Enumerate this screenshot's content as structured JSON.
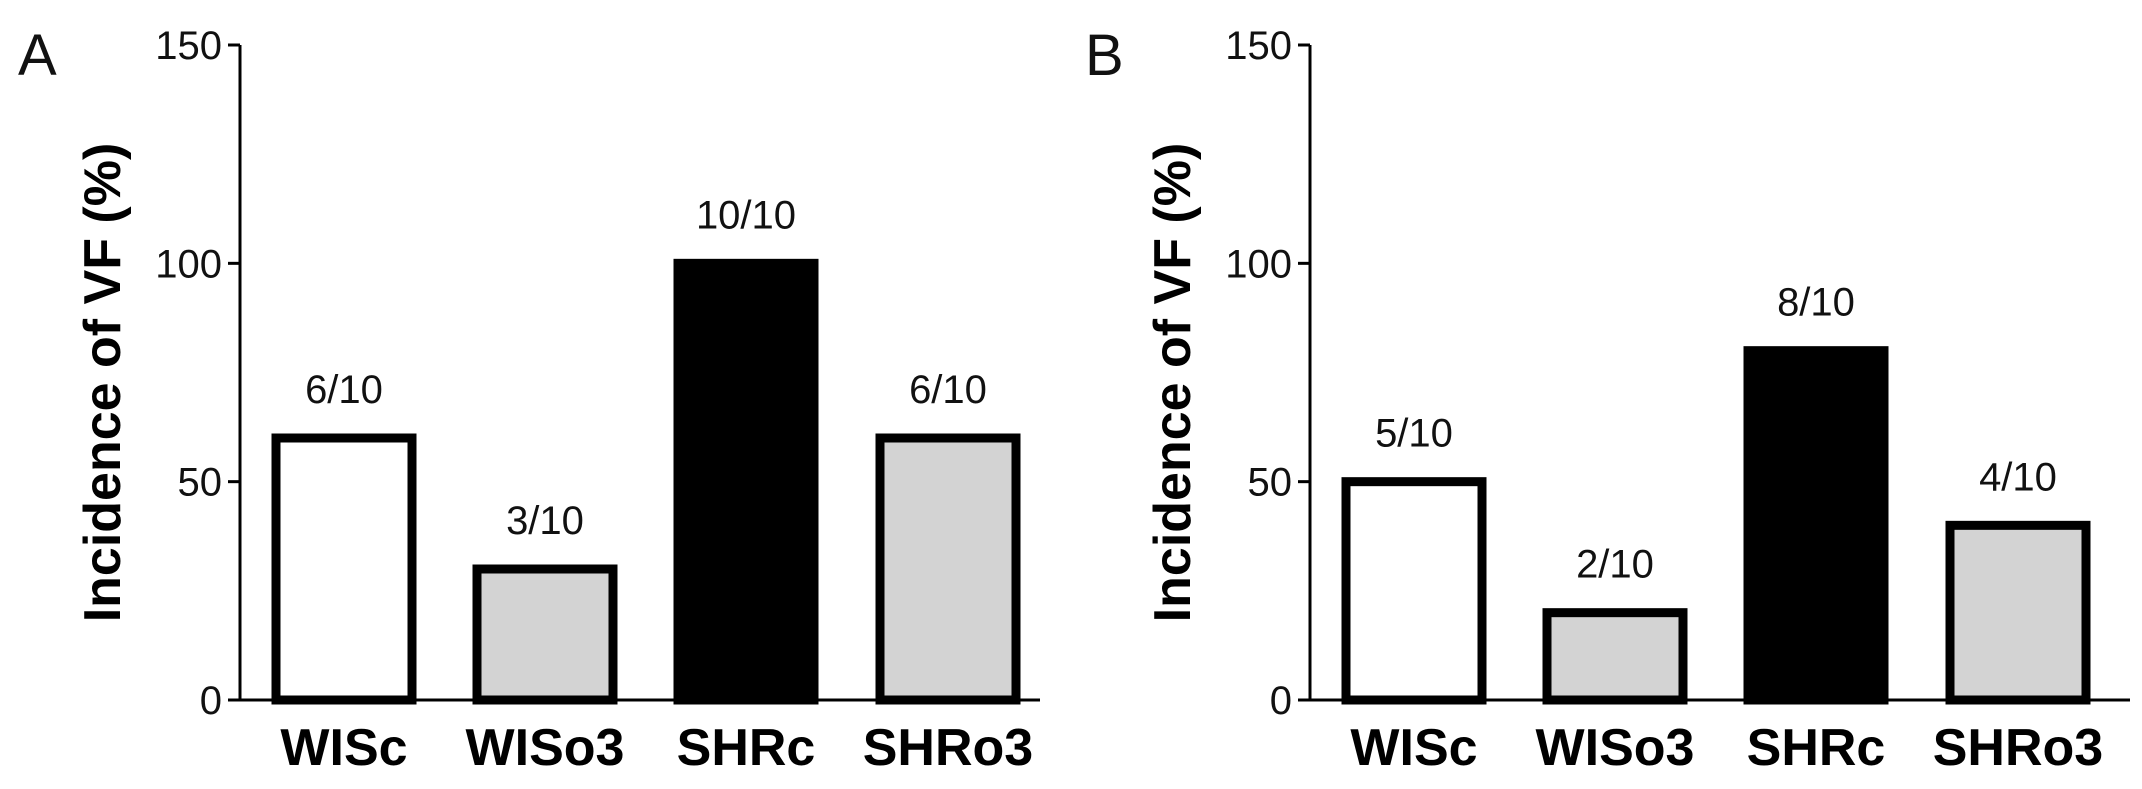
{
  "chart_data": [
    {
      "panel": "A",
      "type": "bar",
      "categories": [
        "WISc",
        "WISo3",
        "SHRc",
        "SHRo3"
      ],
      "values": [
        60,
        30,
        100,
        60
      ],
      "bar_labels": [
        "6/10",
        "3/10",
        "10/10",
        "6/10"
      ],
      "bar_colors": [
        "#ffffff",
        "#d3d3d3",
        "#000000",
        "#d3d3d3"
      ],
      "ylabel": "Incidence of VF (%)",
      "ylim": [
        0,
        150
      ],
      "yticks": [
        0,
        50,
        100,
        150
      ],
      "grid": false
    },
    {
      "panel": "B",
      "type": "bar",
      "categories": [
        "WISc",
        "WISo3",
        "SHRc",
        "SHRo3"
      ],
      "values": [
        50,
        20,
        80,
        40
      ],
      "bar_labels": [
        "5/10",
        "2/10",
        "8/10",
        "4/10"
      ],
      "bar_colors": [
        "#ffffff",
        "#d3d3d3",
        "#000000",
        "#d3d3d3"
      ],
      "ylabel": "Incidence of VF (%)",
      "ylim": [
        0,
        150
      ],
      "yticks": [
        0,
        50,
        100,
        150
      ],
      "grid": false
    }
  ]
}
